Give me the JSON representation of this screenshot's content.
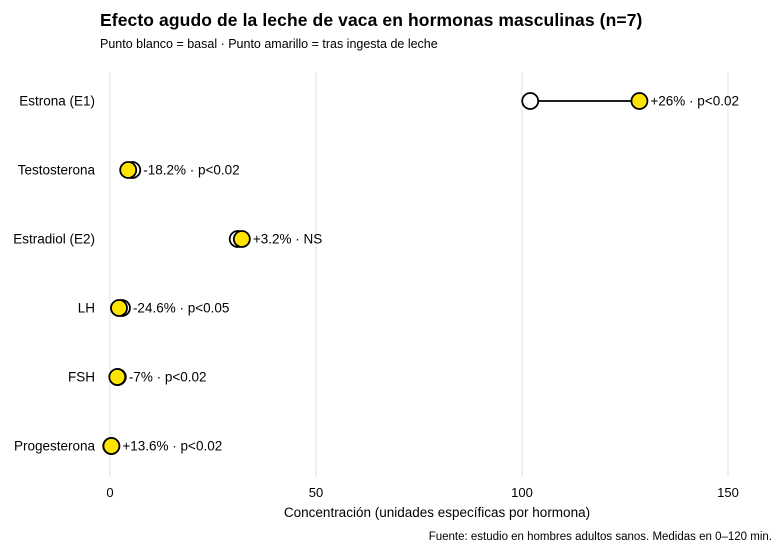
{
  "header": {
    "title": "Efecto agudo de la leche de vaca en hormonas masculinas (n=7)",
    "subtitle": "Punto blanco = basal · Punto amarillo = tras ingesta de leche"
  },
  "footer": {
    "source": "Fuente: estudio en hombres adultos sanos. Medidas en 0–120 min."
  },
  "chart_data": {
    "type": "scatter",
    "variant": "dumbbell",
    "orientation": "horizontal",
    "title": "Efecto agudo de la leche de vaca en hormonas masculinas (n=7)",
    "subtitle": "Punto blanco = basal · Punto amarillo = tras ingesta de leche",
    "categories": [
      "Estrona (E1)",
      "Testosterona",
      "Estradiol (E2)",
      "LH",
      "FSH",
      "Progesterona"
    ],
    "series": [
      {
        "name": "basal",
        "marker": "circle",
        "marker_color": "#ffffff",
        "values": [
          102,
          5.4,
          31,
          2.9,
          1.9,
          0.3
        ]
      },
      {
        "name": "tras ingesta de leche",
        "marker": "circle",
        "marker_color": "#ffe400",
        "values": [
          128.5,
          4.42,
          32,
          2.19,
          1.77,
          0.34
        ]
      }
    ],
    "annotations": [
      "+26% · p<0.02",
      "-18.2% · p<0.02",
      "+3.2% · NS",
      "-24.6% · p<0.05",
      "-7% · p<0.02",
      "+13.6% · p<0.02"
    ],
    "xlabel": "Concentración (unidades específicas por hormona)",
    "ylabel": "",
    "xlim": [
      0,
      150
    ],
    "xticks": [
      0,
      50,
      100,
      150
    ],
    "grid": "vertical major gridlines only",
    "legend_position": "none (explained in subtitle)",
    "colors": {
      "grid": "#e4e4e4",
      "connector": "#000000",
      "marker_outline": "#000000",
      "basal_fill": "#ffffff",
      "post_fill": "#ffe400",
      "text": "#000000"
    }
  }
}
